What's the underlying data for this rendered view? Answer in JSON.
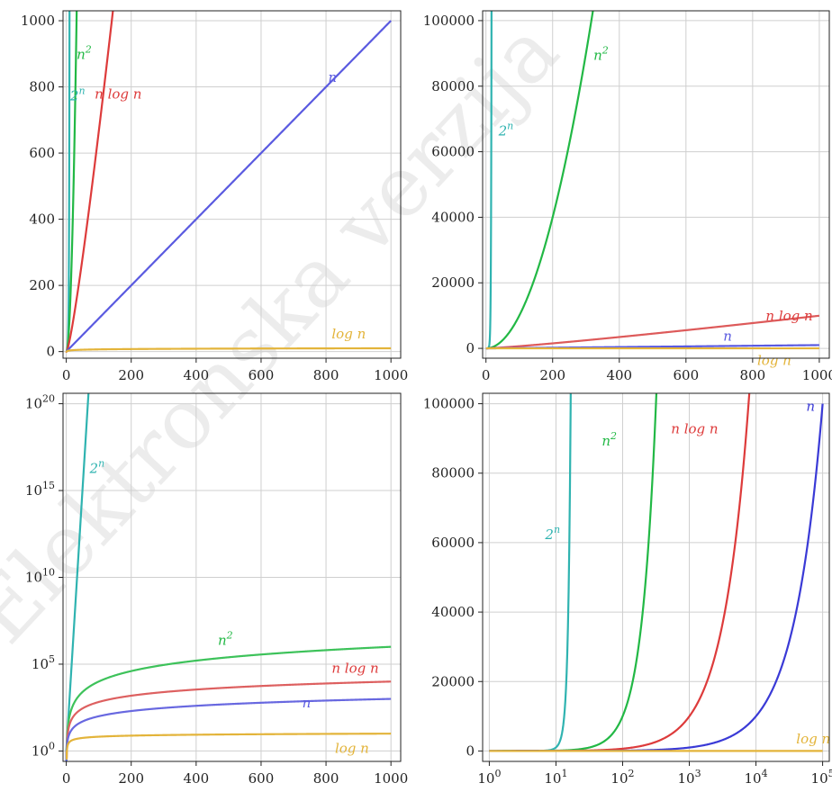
{
  "chart_data": [
    {
      "type": "line",
      "xlim": [
        -10,
        1030
      ],
      "ylim": [
        -20,
        1030
      ],
      "xticks": [
        0,
        200,
        400,
        600,
        800,
        1000
      ],
      "yticks": [
        0,
        200,
        400,
        600,
        800,
        1000
      ],
      "grid": true,
      "series": [
        {
          "name": "2^n",
          "color": "#2fb3b0",
          "fn": "exp2"
        },
        {
          "name": "n^2",
          "color": "#22b845",
          "fn": "sq"
        },
        {
          "name": "n log n",
          "color": "#dd3b3b",
          "fn": "nlogn"
        },
        {
          "name": "n",
          "color": "#5a5ae0",
          "fn": "lin"
        },
        {
          "name": "log n",
          "color": "#e3b43a",
          "fn": "log"
        }
      ],
      "labels": [
        {
          "text": "2n",
          "base": "2",
          "sup": "n",
          "color": "#2fb3b0",
          "x": 35,
          "y": 760
        },
        {
          "text": "n2",
          "base": "n",
          "sup": "2",
          "color": "#22b845",
          "x": 55,
          "y": 885
        },
        {
          "text": "n log n",
          "base": "n log n",
          "color": "#dd3b3b",
          "x": 160,
          "y": 765
        },
        {
          "text": "n",
          "base": "n",
          "color": "#5a5ae0",
          "x": 820,
          "y": 815
        },
        {
          "text": "log n",
          "base": "log n",
          "color": "#e3b43a",
          "x": 870,
          "y": 40
        }
      ]
    },
    {
      "type": "line",
      "xlim": [
        -10,
        1030
      ],
      "ylim": [
        -3000,
        103000
      ],
      "xticks": [
        0,
        200,
        400,
        600,
        800,
        1000
      ],
      "yticks": [
        0,
        20000,
        40000,
        60000,
        80000,
        100000
      ],
      "grid": true,
      "series": [
        {
          "name": "2^n",
          "color": "#2fb3b0",
          "fn": "exp2"
        },
        {
          "name": "n^2",
          "color": "#22b845",
          "fn": "sq"
        },
        {
          "name": "n log n",
          "color": "#dd5a5a",
          "fn": "nlogn"
        },
        {
          "name": "n",
          "color": "#5a5ae0",
          "fn": "lin"
        },
        {
          "name": "log n",
          "color": "#e3b43a",
          "fn": "log"
        }
      ],
      "labels": [
        {
          "text": "2n",
          "base": "2",
          "sup": "n",
          "color": "#2fb3b0",
          "x": 60,
          "y": 65000
        },
        {
          "text": "n2",
          "base": "n",
          "sup": "2",
          "color": "#22b845",
          "x": 345,
          "y": 88000
        },
        {
          "text": "n log n",
          "base": "n log n",
          "color": "#dd3b3b",
          "x": 910,
          "y": 8500
        },
        {
          "text": "n",
          "base": "n",
          "color": "#5a5ae0",
          "x": 725,
          "y": 2300
        },
        {
          "text": "log n",
          "base": "log n",
          "color": "#e3b43a",
          "x": 865,
          "y": -5000
        }
      ]
    },
    {
      "type": "line",
      "yscale": "log",
      "xlim": [
        -10,
        1030
      ],
      "ylim": [
        -0.6,
        20.6
      ],
      "xticks": [
        0,
        200,
        400,
        600,
        800,
        1000
      ],
      "ytick_exps": [
        0,
        5,
        10,
        15,
        20
      ],
      "grid": true,
      "series": [
        {
          "name": "2^n",
          "color": "#2fb3b0",
          "fn": "exp2"
        },
        {
          "name": "n^2",
          "color": "#3dc25a",
          "fn": "sq"
        },
        {
          "name": "n log n",
          "color": "#dd6060",
          "fn": "nlogn"
        },
        {
          "name": "n",
          "color": "#6868e0",
          "fn": "lin"
        },
        {
          "name": "log n",
          "color": "#e3b43a",
          "fn": "log"
        }
      ],
      "labels": [
        {
          "text": "2n",
          "base": "2",
          "sup": "n",
          "color": "#2fb3b0",
          "x": 95,
          "y": 16
        },
        {
          "text": "n2",
          "base": "n",
          "sup": "2",
          "color": "#22b845",
          "x": 490,
          "y": 6.1
        },
        {
          "text": "n log n",
          "base": "n log n",
          "color": "#dd3b3b",
          "x": 890,
          "y": 4.5
        },
        {
          "text": "n",
          "base": "n",
          "color": "#5a5ae0",
          "x": 740,
          "y": 2.5
        },
        {
          "text": "log n",
          "base": "log n",
          "color": "#e3b43a",
          "x": 880,
          "y": -0.1
        }
      ]
    },
    {
      "type": "line",
      "xscale": "log",
      "xlim": [
        -0.1,
        5.1
      ],
      "ylim": [
        -3000,
        103000
      ],
      "xtick_exps": [
        0,
        1,
        2,
        3,
        4,
        5
      ],
      "yticks": [
        0,
        20000,
        40000,
        60000,
        80000,
        100000
      ],
      "grid": true,
      "series": [
        {
          "name": "2^n",
          "color": "#2fb3b0",
          "fn": "exp2"
        },
        {
          "name": "n^2",
          "color": "#22b845",
          "fn": "sq"
        },
        {
          "name": "n log n",
          "color": "#dd3b3b",
          "fn": "nlogn"
        },
        {
          "name": "n",
          "color": "#3a3ad6",
          "fn": "lin"
        },
        {
          "name": "log n",
          "color": "#e3b43a",
          "fn": "log"
        }
      ],
      "labels": [
        {
          "text": "2n",
          "base": "2",
          "sup": "n",
          "color": "#2fb3b0",
          "x": 0.95,
          "y": 61000
        },
        {
          "text": "n2",
          "base": "n",
          "sup": "2",
          "color": "#22b845",
          "x": 1.8,
          "y": 88000
        },
        {
          "text": "n log n",
          "base": "n log n",
          "color": "#dd3b3b",
          "x": 3.08,
          "y": 91500
        },
        {
          "text": "n",
          "base": "n",
          "color": "#3a3ad6",
          "x": 4.82,
          "y": 98000
        },
        {
          "text": "log n",
          "base": "log n",
          "color": "#e3b43a",
          "x": 4.86,
          "y": 2200
        }
      ]
    }
  ],
  "watermark": "Elektronska verzija",
  "colors": {
    "grid": "#cfcfcf",
    "axis": "#222222",
    "tick_text": "#222222"
  }
}
